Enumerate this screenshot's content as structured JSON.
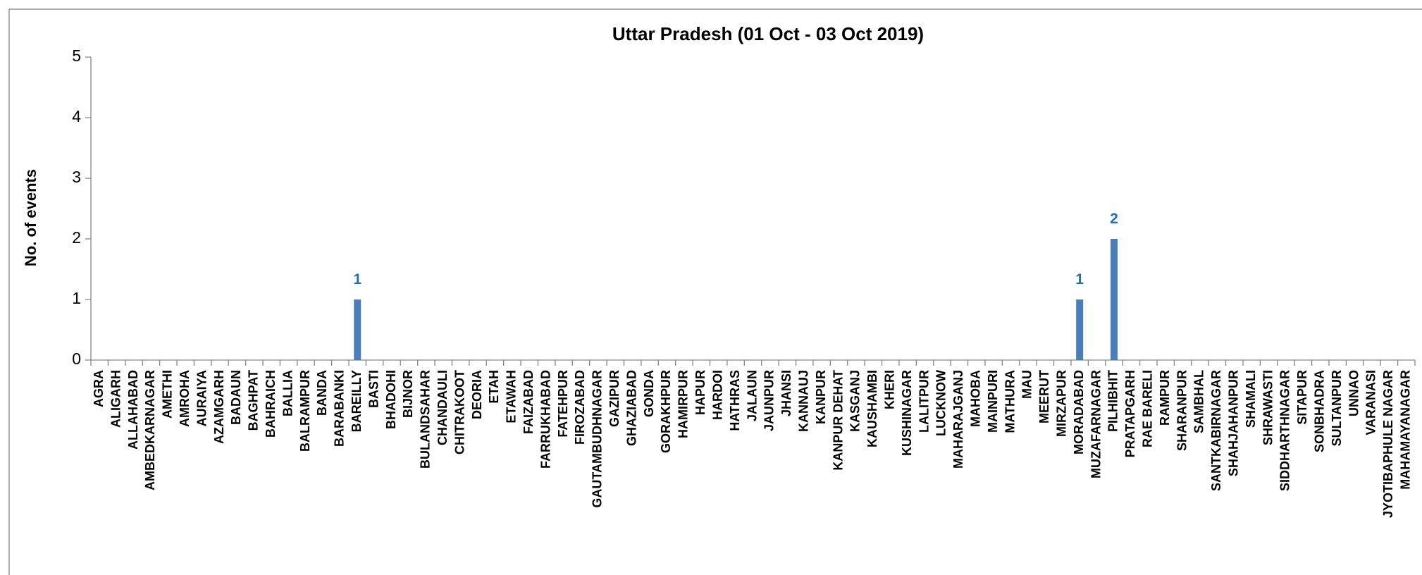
{
  "chart_data": {
    "type": "bar",
    "title": "Uttar Pradesh (01 Oct - 03 Oct 2019)",
    "y_label": "No. of events",
    "categories": [
      "AGRA",
      "ALIGARH",
      "ALLAHABAD",
      "AMBEDKARNAGAR",
      "AMETHI",
      "AMROHA",
      "AURAIYA",
      "AZAMGARH",
      "BADAUN",
      "BAGHPAT",
      "BAHRAICH",
      "BALLIA",
      "BALRAMPUR",
      "BANDA",
      "BARABANKI",
      "BAREILLY",
      "BASTI",
      "BHADOHI",
      "BIJNOR",
      "BULANDSAHAR",
      "CHANDAULI",
      "CHITRAKOOT",
      "DEORIA",
      "ETAH",
      "ETAWAH",
      "FAIZABAD",
      "FARRUKHABAD",
      "FATEHPUR",
      "FIROZABAD",
      "GAUTAMBUDHNAGAR",
      "GAZIPUR",
      "GHAZIABAD",
      "GONDA",
      "GORAKHPUR",
      "HAMIRPUR",
      "HAPUR",
      "HARDOI",
      "HATHRAS",
      "JALAUN",
      "JAUNPUR",
      "JHANSI",
      "KANNAUJ",
      "KANPUR",
      "KANPUR DEHAT",
      "KASGANJ",
      "KAUSHAMBI",
      "KHERI",
      "KUSHINAGAR",
      "LALITPUR",
      "LUCKNOW",
      "MAHARAJGANJ",
      "MAHOBA",
      "MAINPURI",
      "MATHURA",
      "MAU",
      "MEERUT",
      "MIRZAPUR",
      "MORADABAD",
      "MUZAFARNAGAR",
      "PILHIBHIT",
      "PRATAPGARH",
      "RAE BARELI",
      "RAMPUR",
      "SHARANPUR",
      "SAMBHAL",
      "SANTKABIRNAGAR",
      "SHAHJAHANPUR",
      "SHAMALI",
      "SHRAWASTI",
      "SIDDHARTHNAGAR",
      "SITAPUR",
      "SONBHADRA",
      "SULTANPUR",
      "UNNAO",
      "VARANASI",
      "JYOTIBAPHULE NAGAR",
      "MAHAMAYANAGAR"
    ],
    "values": [
      0,
      0,
      0,
      0,
      0,
      0,
      0,
      0,
      0,
      0,
      0,
      0,
      0,
      0,
      0,
      1,
      0,
      0,
      0,
      0,
      0,
      0,
      0,
      0,
      0,
      0,
      0,
      0,
      0,
      0,
      0,
      0,
      0,
      0,
      0,
      0,
      0,
      0,
      0,
      0,
      0,
      0,
      0,
      0,
      0,
      0,
      0,
      0,
      0,
      0,
      0,
      0,
      0,
      0,
      0,
      0,
      0,
      1,
      0,
      2,
      0,
      0,
      0,
      0,
      0,
      0,
      0,
      0,
      0,
      0,
      0,
      0,
      0,
      0,
      0,
      0,
      0
    ],
    "color": "#4a7ebb",
    "label_color": "#1f6fb5",
    "ylim": [
      0,
      5
    ],
    "yticks": [
      0,
      1,
      2,
      3,
      4,
      5
    ],
    "grid": false
  }
}
